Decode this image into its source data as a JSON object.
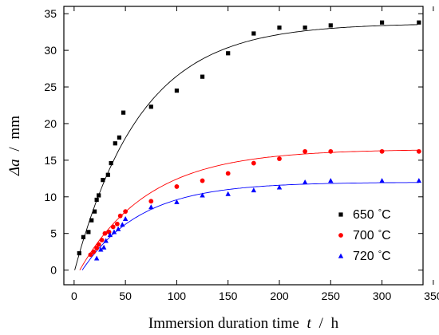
{
  "chart_data": {
    "type": "scatter",
    "xlabel": "Immersion duration time",
    "xvar": "t",
    "xunit": "h",
    "ylabel_symbol": "Δa",
    "yunit": "mm",
    "xlim": [
      -10,
      340
    ],
    "ylim": [
      -2,
      36
    ],
    "xticks": [
      0,
      50,
      100,
      150,
      200,
      250,
      300,
      350
    ],
    "yticks": [
      0,
      5,
      10,
      15,
      20,
      25,
      30,
      35
    ],
    "legend_position": "bottom-right",
    "grid": false,
    "series": [
      {
        "name": "650 °C",
        "label_value": "650",
        "unit": "°C",
        "marker": "square",
        "color": "#000000",
        "x": [
          5,
          9,
          14,
          17,
          20,
          22,
          24,
          28,
          33,
          36,
          40,
          44,
          48,
          75,
          100,
          125,
          150,
          175,
          200,
          225,
          250,
          300,
          336
        ],
        "y": [
          2.3,
          4.5,
          5.2,
          6.8,
          8.0,
          9.6,
          10.2,
          12.3,
          13.0,
          14.6,
          17.3,
          18.1,
          21.5,
          22.3,
          24.5,
          26.4,
          29.6,
          32.3,
          33.1,
          33.1,
          33.4,
          33.8,
          33.8
        ],
        "fit": {
          "a": 33.7,
          "b": 0.0155,
          "c": 0.6
        }
      },
      {
        "name": "700 °C",
        "label_value": "700",
        "unit": "°C",
        "marker": "circle",
        "color": "#ff0000",
        "x": [
          16,
          19,
          22,
          24,
          27,
          30,
          34,
          38,
          42,
          45,
          50,
          75,
          100,
          125,
          150,
          175,
          200,
          225,
          250,
          300,
          336
        ],
        "y": [
          2.1,
          2.5,
          3.0,
          3.5,
          4.1,
          5.0,
          5.2,
          5.9,
          6.3,
          7.4,
          8.0,
          9.4,
          11.4,
          12.2,
          13.2,
          14.6,
          15.2,
          16.2,
          16.2,
          16.2,
          16.2
        ],
        "fit": {
          "a": 16.5,
          "b": 0.0148,
          "c": 5.5
        }
      },
      {
        "name": "720 °C",
        "label_value": "720",
        "unit": "°C",
        "marker": "triangle",
        "color": "#0000ff",
        "x": [
          22,
          26,
          29,
          31,
          35,
          39,
          43,
          47,
          50,
          75,
          100,
          125,
          150,
          175,
          200,
          225,
          250,
          300,
          336
        ],
        "y": [
          1.6,
          2.8,
          3.1,
          4.0,
          4.8,
          5.2,
          5.6,
          6.2,
          7.0,
          8.6,
          9.3,
          10.2,
          10.4,
          10.9,
          11.3,
          12.0,
          12.2,
          12.2,
          12.2
        ],
        "fit": {
          "a": 12.0,
          "b": 0.0175,
          "c": 8.0
        }
      }
    ]
  }
}
